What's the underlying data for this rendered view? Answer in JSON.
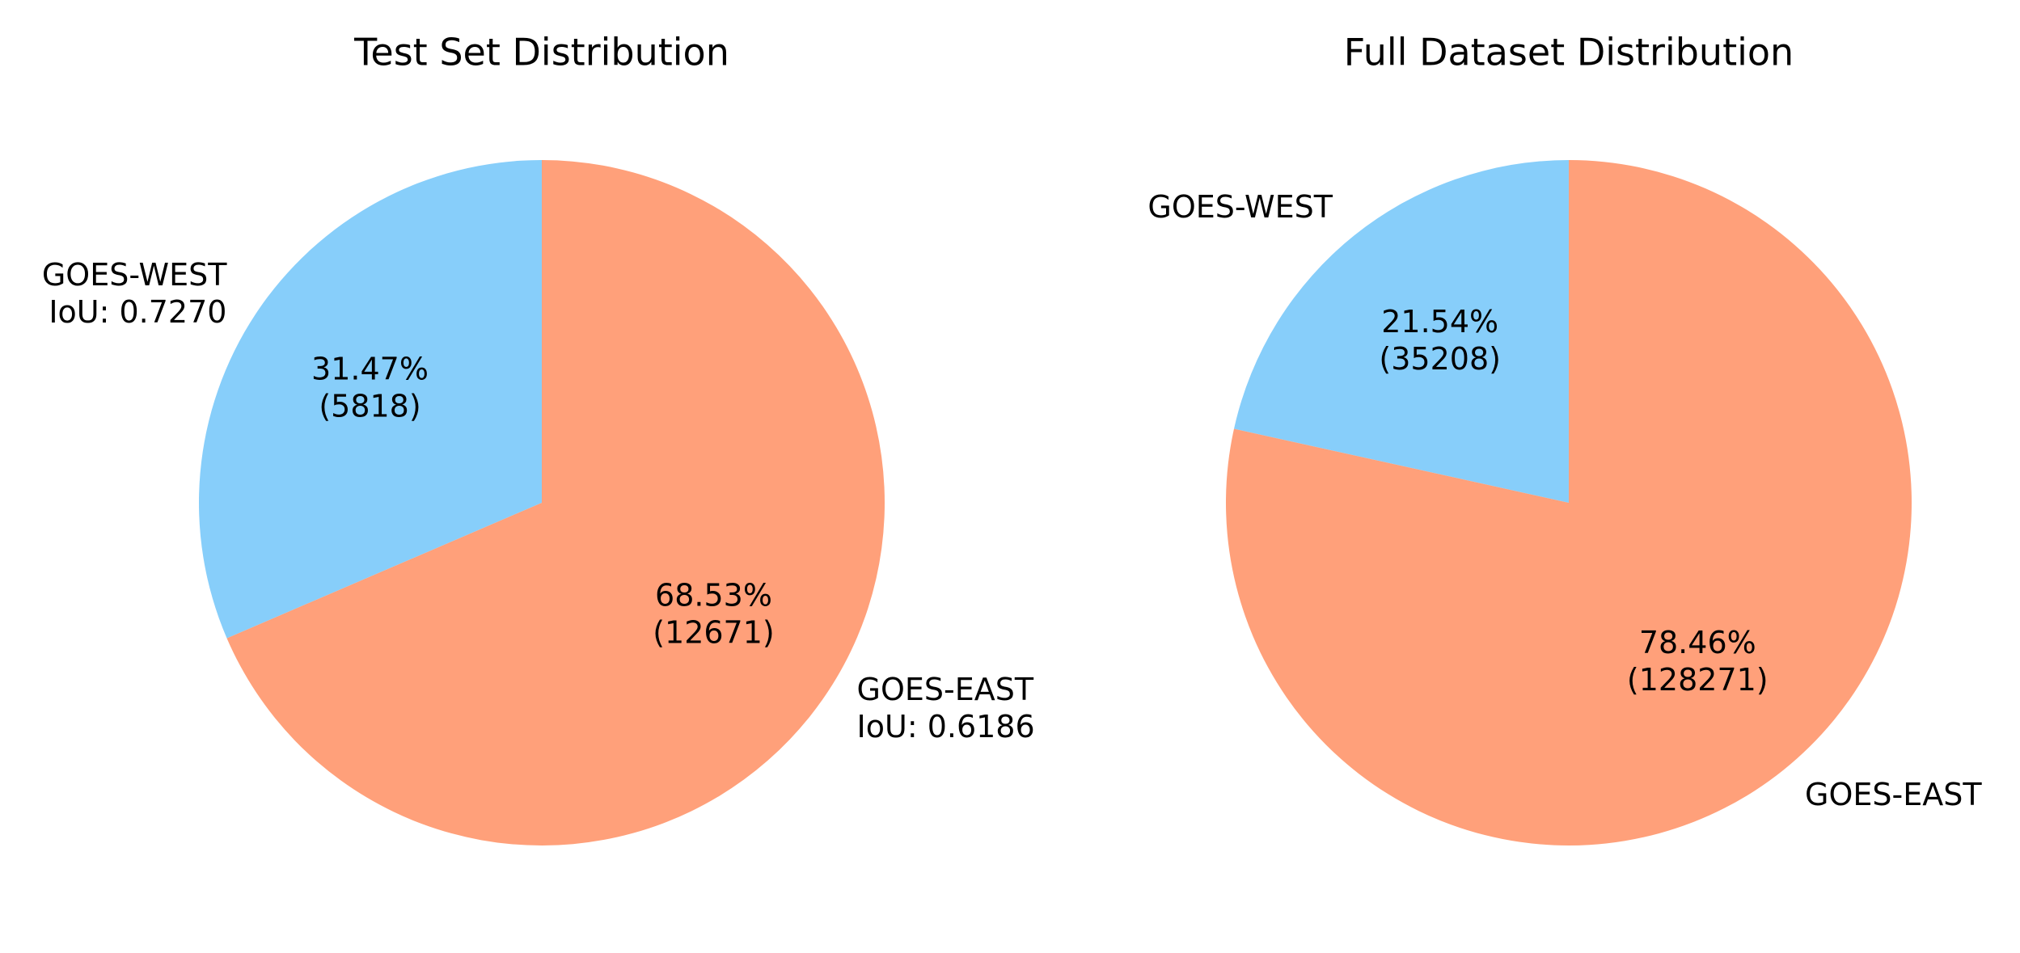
{
  "chart_data": [
    {
      "type": "pie",
      "title": "Test Set Distribution",
      "slices": [
        {
          "name": "GOES-WEST",
          "label_lines": [
            "GOES-WEST",
            "IoU: 0.7270"
          ],
          "value": 5818,
          "percent_label": "31.47%",
          "count_label": "(5818)",
          "color": "#87CEFA"
        },
        {
          "name": "GOES-EAST",
          "label_lines": [
            "GOES-EAST",
            "IoU: 0.6186"
          ],
          "value": 12671,
          "percent_label": "68.53%",
          "count_label": "(12671)",
          "color": "#FFA07A"
        }
      ]
    },
    {
      "type": "pie",
      "title": "Full Dataset Distribution",
      "slices": [
        {
          "name": "GOES-WEST",
          "label_lines": [
            "GOES-WEST"
          ],
          "value": 35208,
          "percent_label": "21.54%",
          "count_label": "(35208)",
          "color": "#87CEFA"
        },
        {
          "name": "GOES-EAST",
          "label_lines": [
            "GOES-EAST"
          ],
          "value": 128271,
          "percent_label": "78.46%",
          "count_label": "(128271)",
          "color": "#FFA07A"
        }
      ]
    }
  ]
}
